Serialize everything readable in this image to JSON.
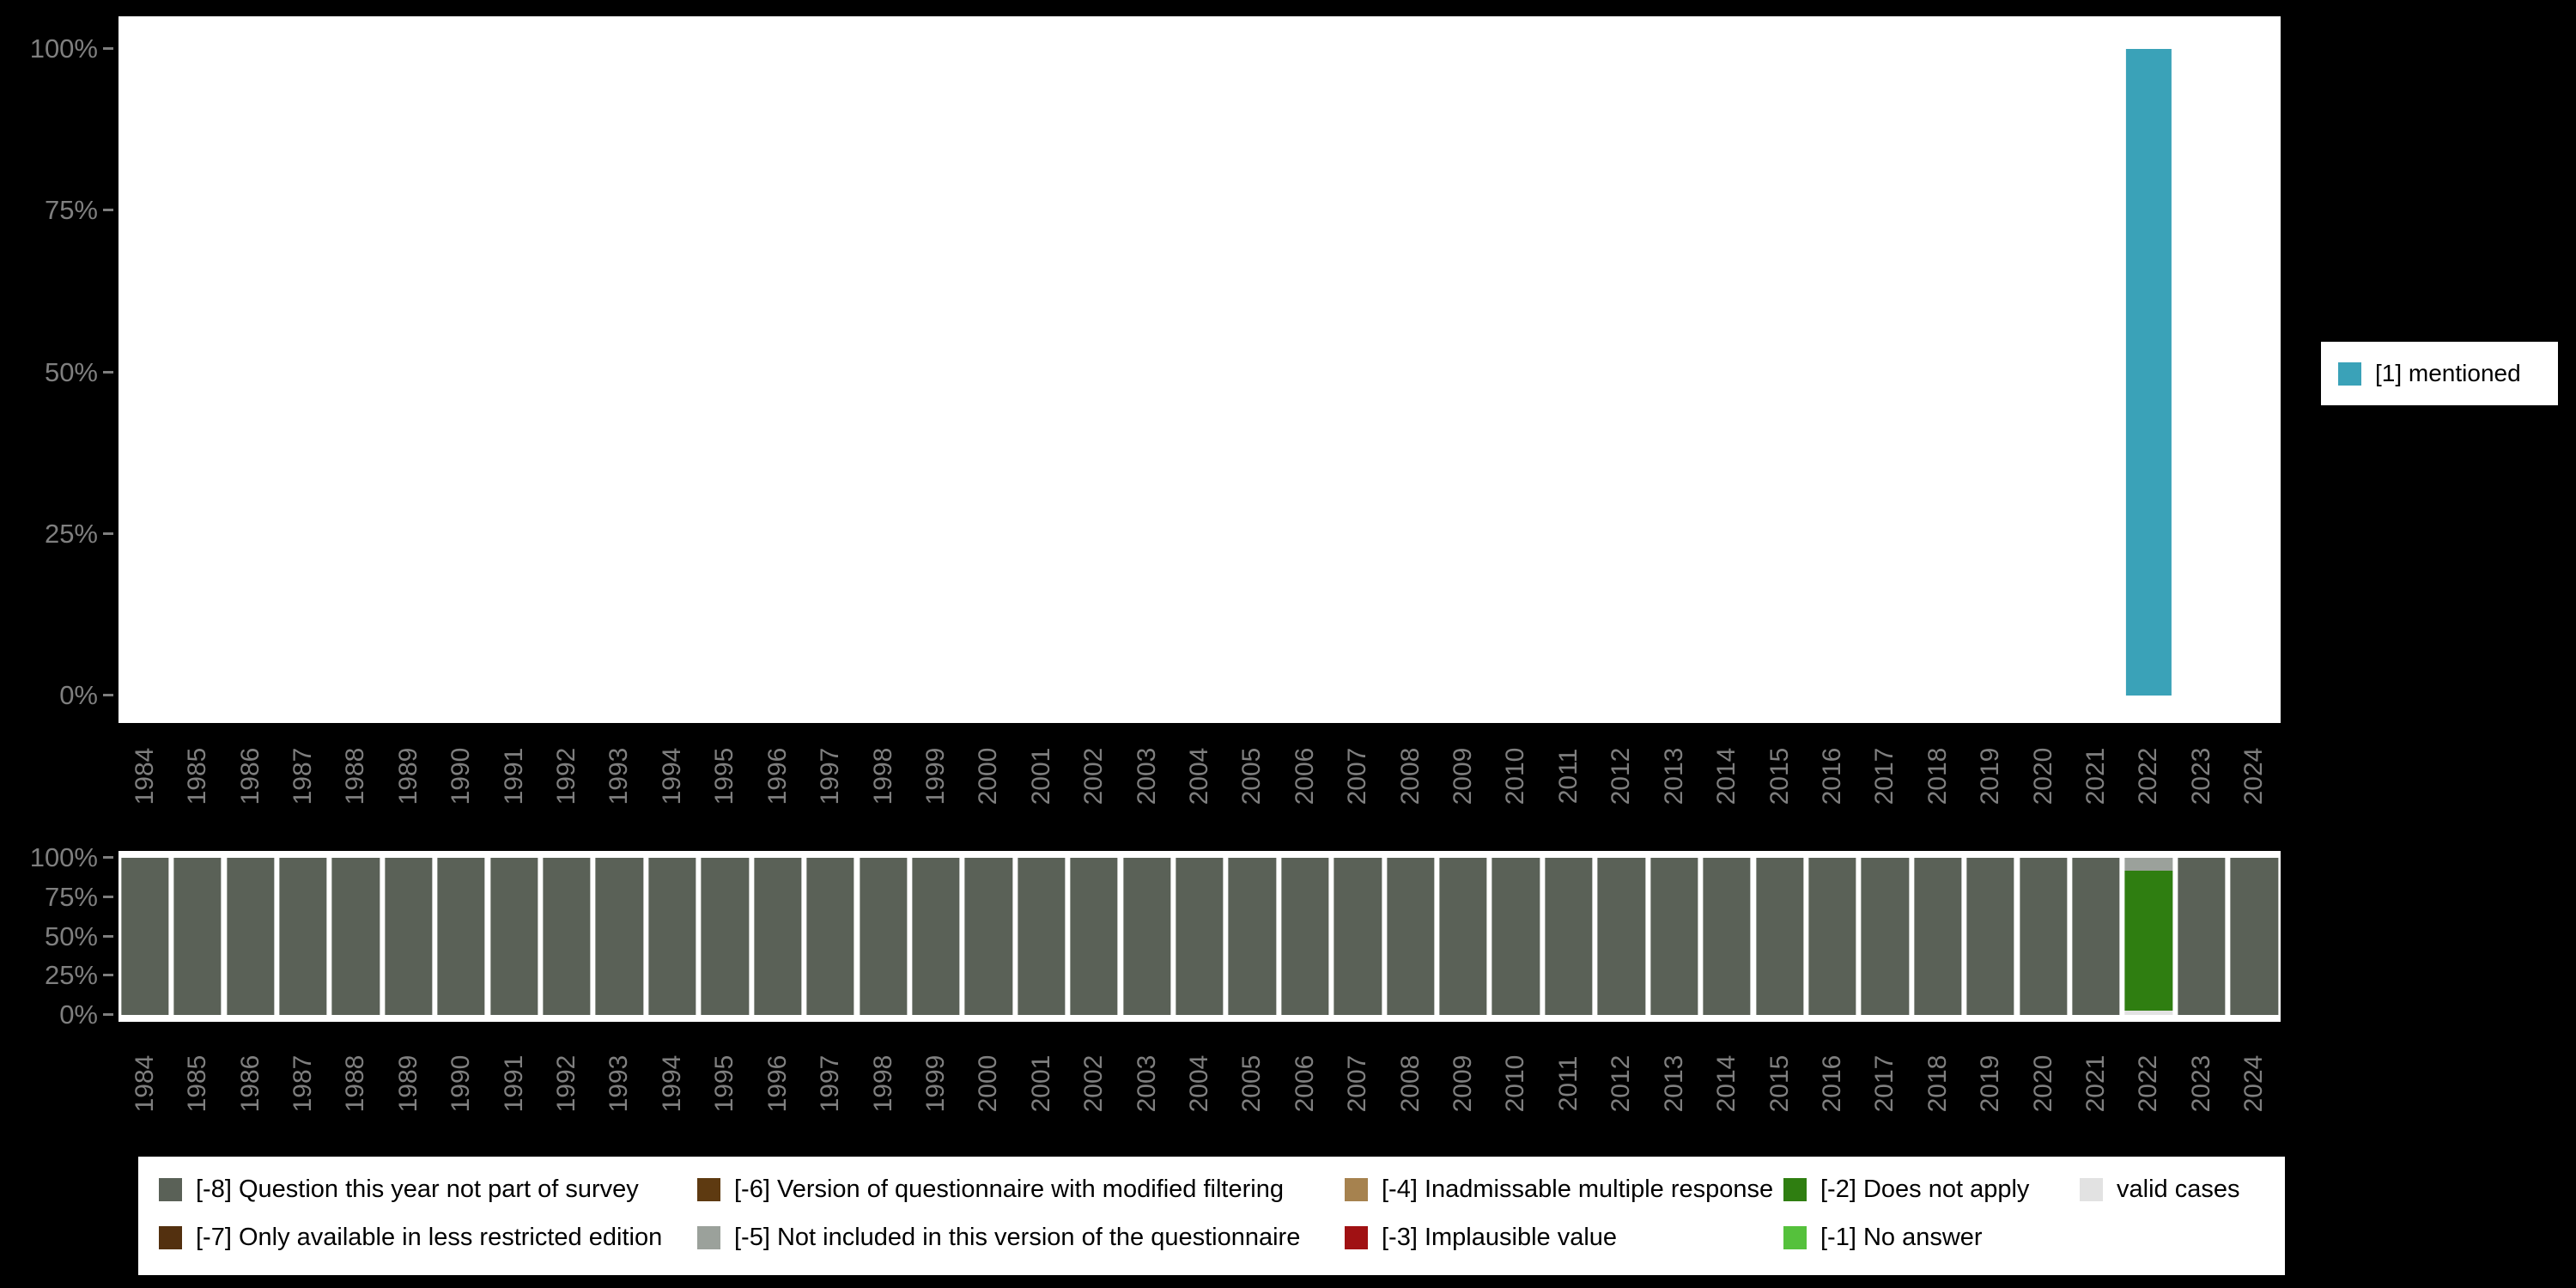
{
  "colors": {
    "background": "#000000",
    "panel": "#FFFFFF",
    "axis_text": "#7F7F7F",
    "mentioned": "#3AA2B8",
    "not_part_of_survey": "#5A6157",
    "does_not_apply": "#2F7E11",
    "valid_cases": "#E2E2E2"
  },
  "chart_data": [
    {
      "type": "bar",
      "title": "",
      "xlabel": "",
      "ylabel": "",
      "ylim": [
        0,
        100
      ],
      "grid": false,
      "legend_position": "right",
      "y_ticks": [
        "100%",
        "75%",
        "50%",
        "25%",
        "0%"
      ],
      "categories": [
        "1984",
        "1985",
        "1986",
        "1987",
        "1988",
        "1989",
        "1990",
        "1991",
        "1992",
        "1993",
        "1994",
        "1995",
        "1996",
        "1997",
        "1998",
        "1999",
        "2000",
        "2001",
        "2002",
        "2003",
        "2004",
        "2005",
        "2006",
        "2007",
        "2008",
        "2009",
        "2010",
        "2011",
        "2012",
        "2013",
        "2014",
        "2015",
        "2016",
        "2017",
        "2018",
        "2019",
        "2020",
        "2021",
        "2022",
        "2023",
        "2024"
      ],
      "series": [
        {
          "name": "[1] mentioned",
          "color": "#3AA2B8",
          "values": [
            0,
            0,
            0,
            0,
            0,
            0,
            0,
            0,
            0,
            0,
            0,
            0,
            0,
            0,
            0,
            0,
            0,
            0,
            0,
            0,
            0,
            0,
            0,
            0,
            0,
            0,
            0,
            0,
            0,
            0,
            0,
            0,
            0,
            0,
            0,
            0,
            0,
            0,
            100,
            0,
            0
          ]
        }
      ],
      "legend": [
        {
          "label": "[1] mentioned",
          "color": "#3AA2B8"
        }
      ]
    },
    {
      "type": "stacked-bar",
      "title": "",
      "xlabel": "",
      "ylabel": "",
      "ylim": [
        0,
        100
      ],
      "grid": false,
      "legend_position": "bottom",
      "y_ticks": [
        "100%",
        "75%",
        "50%",
        "25%",
        "0%"
      ],
      "categories": [
        "1984",
        "1985",
        "1986",
        "1987",
        "1988",
        "1989",
        "1990",
        "1991",
        "1992",
        "1993",
        "1994",
        "1995",
        "1996",
        "1997",
        "1998",
        "1999",
        "2000",
        "2001",
        "2002",
        "2003",
        "2004",
        "2005",
        "2006",
        "2007",
        "2008",
        "2009",
        "2010",
        "2011",
        "2012",
        "2013",
        "2014",
        "2015",
        "2016",
        "2017",
        "2018",
        "2019",
        "2020",
        "2021",
        "2022",
        "2023",
        "2024"
      ],
      "series": [
        {
          "name": "[-8] Question this year not part of survey",
          "color": "#5A6157",
          "values": [
            100,
            100,
            100,
            100,
            100,
            100,
            100,
            100,
            100,
            100,
            100,
            100,
            100,
            100,
            100,
            100,
            100,
            100,
            100,
            100,
            100,
            100,
            100,
            100,
            100,
            100,
            100,
            100,
            100,
            100,
            100,
            100,
            100,
            100,
            100,
            100,
            100,
            100,
            0,
            100,
            100
          ]
        },
        {
          "name": "valid cases",
          "color": "#E2E2E2",
          "values": [
            0,
            0,
            0,
            0,
            0,
            0,
            0,
            0,
            0,
            0,
            0,
            0,
            0,
            0,
            0,
            0,
            0,
            0,
            0,
            0,
            0,
            0,
            0,
            0,
            0,
            0,
            0,
            0,
            0,
            0,
            0,
            0,
            0,
            0,
            0,
            0,
            0,
            0,
            3,
            0,
            0
          ]
        },
        {
          "name": "[-2] Does not apply",
          "color": "#2F7E11",
          "values": [
            0,
            0,
            0,
            0,
            0,
            0,
            0,
            0,
            0,
            0,
            0,
            0,
            0,
            0,
            0,
            0,
            0,
            0,
            0,
            0,
            0,
            0,
            0,
            0,
            0,
            0,
            0,
            0,
            0,
            0,
            0,
            0,
            0,
            0,
            0,
            0,
            0,
            0,
            89,
            0,
            0
          ]
        },
        {
          "name": "[-5] Not included in this version of the questionnaire",
          "color": "#9BA19B",
          "values": [
            0,
            0,
            0,
            0,
            0,
            0,
            0,
            0,
            0,
            0,
            0,
            0,
            0,
            0,
            0,
            0,
            0,
            0,
            0,
            0,
            0,
            0,
            0,
            0,
            0,
            0,
            0,
            0,
            0,
            0,
            0,
            0,
            0,
            0,
            0,
            0,
            0,
            0,
            8,
            0,
            0
          ]
        }
      ],
      "legend": [
        {
          "label": "[-8] Question this year not part of survey",
          "color": "#5A6157"
        },
        {
          "label": "[-6] Version of questionnaire with modified filtering",
          "color": "#5E3A11"
        },
        {
          "label": "[-4] Inadmissable multiple response",
          "color": "#A6824F"
        },
        {
          "label": "[-2] Does not apply",
          "color": "#2F7E11"
        },
        {
          "label": "valid cases",
          "color": "#E2E2E2"
        },
        {
          "label": "[-7] Only available in less restricted edition",
          "color": "#53300F"
        },
        {
          "label": "[-5] Not included in this version of the questionnaire",
          "color": "#9BA19B"
        },
        {
          "label": "[-3] Implausible value",
          "color": "#A01113"
        },
        {
          "label": "[-1] No answer",
          "color": "#55C13C"
        }
      ]
    }
  ]
}
